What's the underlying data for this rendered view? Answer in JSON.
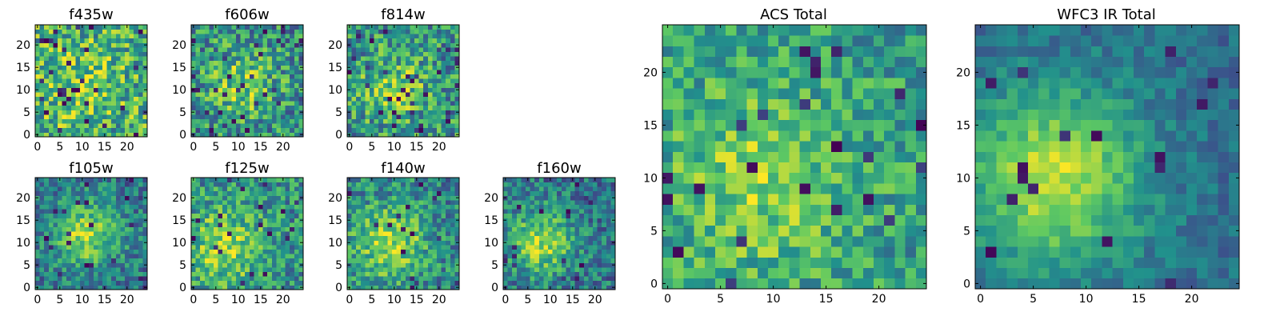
{
  "figure": {
    "colormap": "viridis",
    "grid_size": 25,
    "palette": [
      "#440154",
      "#3b528b",
      "#21918c",
      "#5ec962",
      "#fde725"
    ]
  },
  "chart_data": [
    {
      "type": "heatmap",
      "title": "f435w",
      "xticks": [
        0,
        5,
        10,
        15,
        20
      ],
      "yticks": [
        0,
        5,
        10,
        15,
        20
      ],
      "xlim": [
        0,
        24
      ],
      "ylim": [
        0,
        24
      ],
      "peak": [
        9,
        11
      ],
      "sigma": 7,
      "amp": 0.15,
      "base": 0.62,
      "noise": 0.32,
      "holes": 0.05,
      "seed": 11
    },
    {
      "type": "heatmap",
      "title": "f606w",
      "xticks": [
        0,
        5,
        10,
        15,
        20
      ],
      "yticks": [
        0,
        5,
        10,
        15,
        20
      ],
      "xlim": [
        0,
        24
      ],
      "ylim": [
        0,
        24
      ],
      "peak": [
        11,
        11
      ],
      "sigma": 5,
      "amp": 0.3,
      "base": 0.5,
      "noise": 0.3,
      "holes": 0.05,
      "seed": 23
    },
    {
      "type": "heatmap",
      "title": "f814w",
      "xticks": [
        0,
        5,
        10,
        15,
        20
      ],
      "yticks": [
        0,
        5,
        10,
        15,
        20
      ],
      "xlim": [
        0,
        24
      ],
      "ylim": [
        0,
        24
      ],
      "peak": [
        10,
        10
      ],
      "sigma": 5,
      "amp": 0.28,
      "base": 0.52,
      "noise": 0.3,
      "holes": 0.05,
      "seed": 37
    },
    {
      "type": "heatmap",
      "title": "f105w",
      "xticks": [
        0,
        5,
        10,
        15,
        20
      ],
      "yticks": [
        0,
        5,
        10,
        15,
        20
      ],
      "xlim": [
        0,
        24
      ],
      "ylim": [
        0,
        24
      ],
      "peak": [
        11,
        12
      ],
      "sigma": 5,
      "amp": 0.45,
      "base": 0.4,
      "noise": 0.22,
      "holes": 0.03,
      "seed": 41
    },
    {
      "type": "heatmap",
      "title": "f125w",
      "xticks": [
        0,
        5,
        10,
        15,
        20
      ],
      "yticks": [
        0,
        5,
        10,
        15,
        20
      ],
      "xlim": [
        0,
        24
      ],
      "ylim": [
        0,
        24
      ],
      "peak": [
        7,
        9
      ],
      "sigma": 6,
      "amp": 0.35,
      "base": 0.5,
      "noise": 0.25,
      "holes": 0.03,
      "seed": 53
    },
    {
      "type": "heatmap",
      "title": "f140w",
      "xticks": [
        0,
        5,
        10,
        15,
        20
      ],
      "yticks": [
        0,
        5,
        10,
        15,
        20
      ],
      "xlim": [
        0,
        24
      ],
      "ylim": [
        0,
        24
      ],
      "peak": [
        9,
        10
      ],
      "sigma": 6,
      "amp": 0.4,
      "base": 0.45,
      "noise": 0.24,
      "holes": 0.03,
      "seed": 67
    },
    {
      "type": "heatmap",
      "title": "f160w",
      "xticks": [
        0,
        5,
        10,
        15,
        20
      ],
      "yticks": [
        0,
        5,
        10,
        15,
        20
      ],
      "xlim": [
        0,
        24
      ],
      "ylim": [
        0,
        24
      ],
      "peak": [
        8,
        10
      ],
      "sigma": 5,
      "amp": 0.45,
      "base": 0.4,
      "noise": 0.22,
      "holes": 0.03,
      "seed": 79
    },
    {
      "type": "heatmap",
      "title": "ACS Total",
      "xticks": [
        0,
        5,
        10,
        15,
        20
      ],
      "yticks": [
        0,
        5,
        10,
        15,
        20
      ],
      "xlim": [
        0,
        24
      ],
      "ylim": [
        0,
        24
      ],
      "peak": [
        9,
        10
      ],
      "sigma": 6,
      "amp": 0.28,
      "base": 0.55,
      "noise": 0.22,
      "holes": 0.04,
      "seed": 97
    },
    {
      "type": "heatmap",
      "title": "WFC3 IR Total",
      "xticks": [
        0,
        5,
        10,
        15,
        20
      ],
      "yticks": [
        0,
        5,
        10,
        15,
        20
      ],
      "xlim": [
        0,
        24
      ],
      "ylim": [
        0,
        24
      ],
      "peak": [
        7,
        10
      ],
      "sigma": 6,
      "amp": 0.55,
      "base": 0.35,
      "noise": 0.12,
      "holes": 0.03,
      "seed": 101
    }
  ]
}
